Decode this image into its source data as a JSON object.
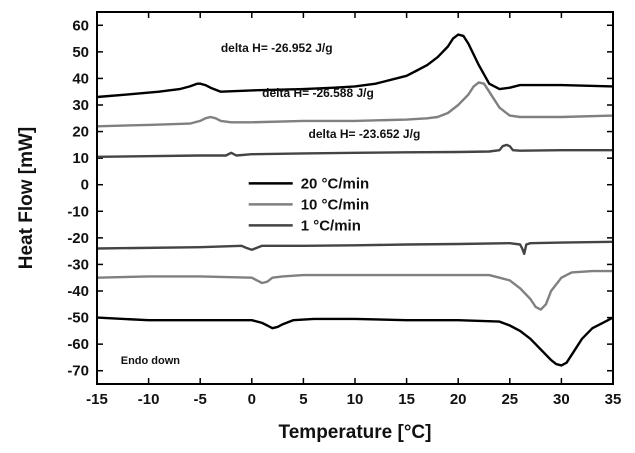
{
  "chart_data": {
    "type": "line",
    "title": "",
    "xlabel": "Temperature [°C]",
    "ylabel": "Heat Flow [mW]",
    "xlim": [
      -15,
      35
    ],
    "ylim": [
      -75,
      65
    ],
    "x_ticks": [
      -15,
      -10,
      -5,
      0,
      5,
      10,
      15,
      20,
      25,
      30,
      35
    ],
    "y_ticks": [
      60,
      50,
      40,
      30,
      20,
      10,
      0,
      -10,
      -20,
      -30,
      -40,
      -50,
      -60,
      -70
    ],
    "legend_position": "center",
    "note": "Endo down",
    "annotations": [
      {
        "text": "delta H= -26.952 J/g",
        "x": -3,
        "y": 50
      },
      {
        "text": "delta H= -26.588 J/g",
        "x": 1,
        "y": 33
      },
      {
        "text": "delta H= -23.652 J/g",
        "x": 5.5,
        "y": 17.5
      }
    ],
    "series": [
      {
        "name": "20 °C/min",
        "color": "#000000",
        "curves": [
          {
            "x": [
              -15,
              -12,
              -9,
              -7,
              -6,
              -5.3,
              -5,
              -4.5,
              -4,
              -3,
              0,
              5,
              8,
              10,
              12,
              14,
              15,
              16,
              17,
              18,
              19,
              19.5,
              20,
              20.5,
              21,
              22,
              23,
              24,
              25,
              26,
              30,
              35
            ],
            "y": [
              33,
              34,
              35,
              36,
              37,
              38,
              38,
              37.5,
              36.5,
              35,
              35.5,
              36,
              36.5,
              37,
              38,
              40,
              41,
              43,
              45,
              48,
              52,
              55,
              56.5,
              56,
              53,
              45,
              38,
              36,
              36.5,
              37.5,
              37.5,
              37
            ]
          },
          {
            "x": [
              -15,
              -10,
              -5,
              0,
              1,
              1.5,
              2,
              2.5,
              3,
              4,
              6,
              10,
              15,
              20,
              24,
              25,
              26,
              27,
              28,
              29,
              29.5,
              30,
              30.5,
              31,
              32,
              33,
              34,
              35
            ],
            "y": [
              -50,
              -51,
              -51,
              -51,
              -52,
              -53,
              -54,
              -53.5,
              -52.5,
              -51,
              -50.5,
              -50.5,
              -51,
              -51,
              -51.5,
              -53,
              -55,
              -58,
              -62,
              -66,
              -67.5,
              -68,
              -67,
              -64,
              -58,
              -54,
              -52,
              -50
            ]
          }
        ]
      },
      {
        "name": "10 °C/min",
        "color": "#808080",
        "curves": [
          {
            "x": [
              -15,
              -10,
              -6,
              -5,
              -4.5,
              -4,
              -3.5,
              -3,
              -2,
              0,
              5,
              10,
              15,
              17,
              18,
              19,
              20,
              21,
              21.5,
              22,
              22.5,
              23,
              24,
              25,
              26,
              30,
              35
            ],
            "y": [
              22,
              22.5,
              23,
              24,
              25,
              25.5,
              25,
              24,
              23.5,
              23.5,
              24,
              24,
              24.5,
              25,
              25.5,
              27,
              30,
              34,
              37,
              38.5,
              38,
              35,
              29,
              26,
              25.5,
              25.5,
              26
            ]
          },
          {
            "x": [
              -15,
              -10,
              -5,
              0,
              0.5,
              1,
              1.5,
              2,
              3,
              5,
              10,
              15,
              20,
              23,
              24,
              25,
              26,
              27,
              27.5,
              28,
              28.5,
              29,
              30,
              31,
              33,
              35
            ],
            "y": [
              -35,
              -34.5,
              -34.5,
              -35,
              -36,
              -37,
              -36.5,
              -35,
              -34.5,
              -34,
              -34,
              -34,
              -34,
              -34,
              -35,
              -36,
              -39,
              -43,
              -46,
              -47,
              -45,
              -40,
              -35,
              -33,
              -32.5,
              -32.5
            ]
          }
        ]
      },
      {
        "name": "1 °C/min",
        "color": "#444444",
        "curves": [
          {
            "x": [
              -15,
              -5,
              -2.5,
              -2,
              -1.5,
              0,
              5,
              10,
              15,
              20,
              23,
              24,
              24.3,
              24.7,
              25,
              25.3,
              26,
              30,
              35
            ],
            "y": [
              10.5,
              11,
              11,
              12,
              11,
              11.5,
              11.8,
              12,
              12.2,
              12.3,
              12.5,
              13,
              14.5,
              15,
              14.5,
              13,
              12.8,
              13,
              13
            ]
          },
          {
            "x": [
              -15,
              -5,
              -1,
              -0.5,
              0,
              1,
              5,
              10,
              15,
              20,
              25,
              26,
              26.2,
              26.4,
              26.6,
              27,
              30,
              35
            ],
            "y": [
              -24,
              -23.5,
              -23,
              -23.8,
              -24.5,
              -23,
              -23,
              -22.8,
              -22.5,
              -22.3,
              -22,
              -22.5,
              -24,
              -26,
              -22.5,
              -22,
              -21.8,
              -21.5
            ]
          }
        ]
      }
    ]
  }
}
